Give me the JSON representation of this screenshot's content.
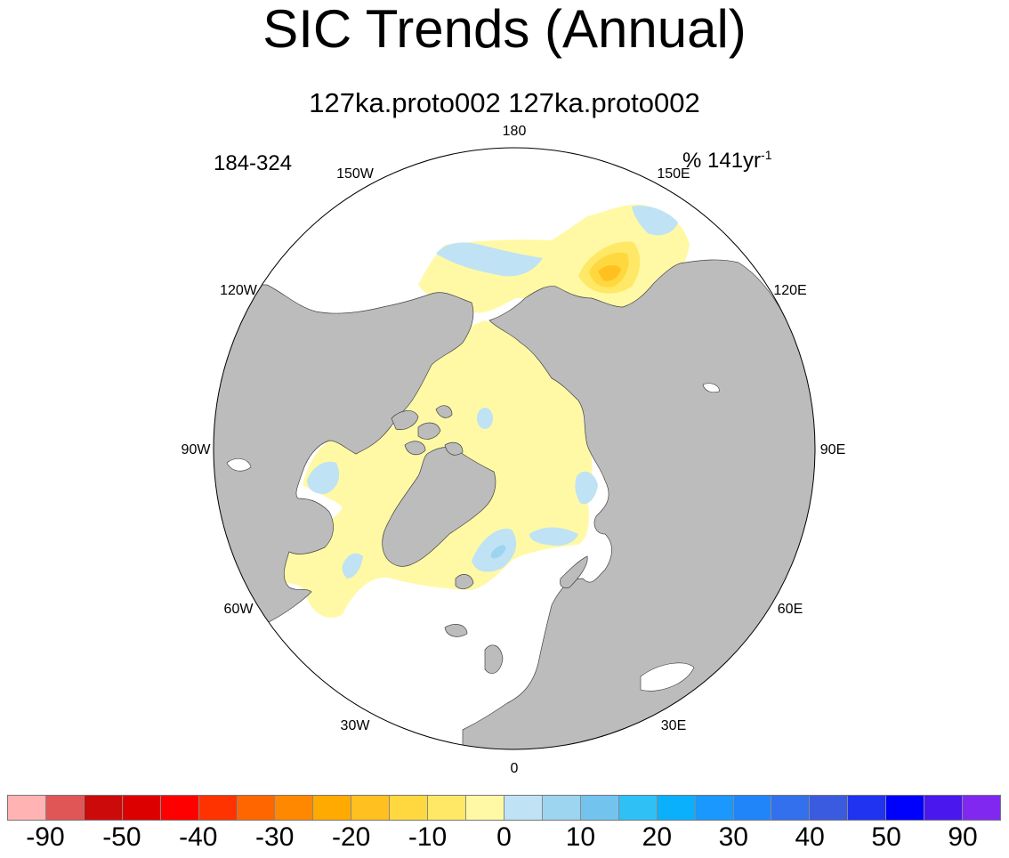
{
  "title": "SIC Trends (Annual)",
  "subtitle": "127ka.proto002  127ka.proto002",
  "left_string": "184-324",
  "right_string": {
    "text": "% 141yr",
    "superscript": "-1"
  },
  "longitude_labels": [
    {
      "id": "180",
      "text": "180",
      "lon": 180
    },
    {
      "id": "150e",
      "text": "150E",
      "lon": 150
    },
    {
      "id": "120e",
      "text": "120E",
      "lon": 120
    },
    {
      "id": "90e",
      "text": "90E",
      "lon": 90
    },
    {
      "id": "60e",
      "text": "60E",
      "lon": 60
    },
    {
      "id": "30e",
      "text": "30E",
      "lon": 30
    },
    {
      "id": "0",
      "text": "0",
      "lon": 0
    },
    {
      "id": "30w",
      "text": "30W",
      "lon": -30
    },
    {
      "id": "60w",
      "text": "60W",
      "lon": -60
    },
    {
      "id": "90w",
      "text": "90W",
      "lon": -90
    },
    {
      "id": "120w",
      "text": "120W",
      "lon": -120
    },
    {
      "id": "150w",
      "text": "150W",
      "lon": -150
    }
  ],
  "colorbar": {
    "colors": [
      "#ffb3b3",
      "#e05555",
      "#cc0a0a",
      "#dd0000",
      "#ff0000",
      "#ff3300",
      "#ff6600",
      "#ff8800",
      "#ffaa00",
      "#ffc020",
      "#ffd840",
      "#ffe866",
      "#fff9a5",
      "#bfe2f4",
      "#9dd4ef",
      "#73c3ef",
      "#2fc0f5",
      "#0ab0fb",
      "#1a98fd",
      "#2185fa",
      "#3370ee",
      "#3a5be0",
      "#1f33f0",
      "#0000fd",
      "#4a18ee",
      "#8128f0"
    ],
    "labels": [
      "-90",
      "-50",
      "-40",
      "-30",
      "-20",
      "-10",
      "0",
      "10",
      "20",
      "30",
      "40",
      "50",
      "90"
    ]
  },
  "map": {
    "projection": "north polar stereographic",
    "land_color": "#bcbcbc",
    "ocean_color": "#ffffff",
    "colors": {
      "zero": "#fff9a5",
      "neg_light": "#ffe866",
      "neg_mid": "#ffd840",
      "neg_strong": "#ffc020",
      "pos_light": "#bfe2f4",
      "pos_mid": "#9dd4ef"
    }
  }
}
